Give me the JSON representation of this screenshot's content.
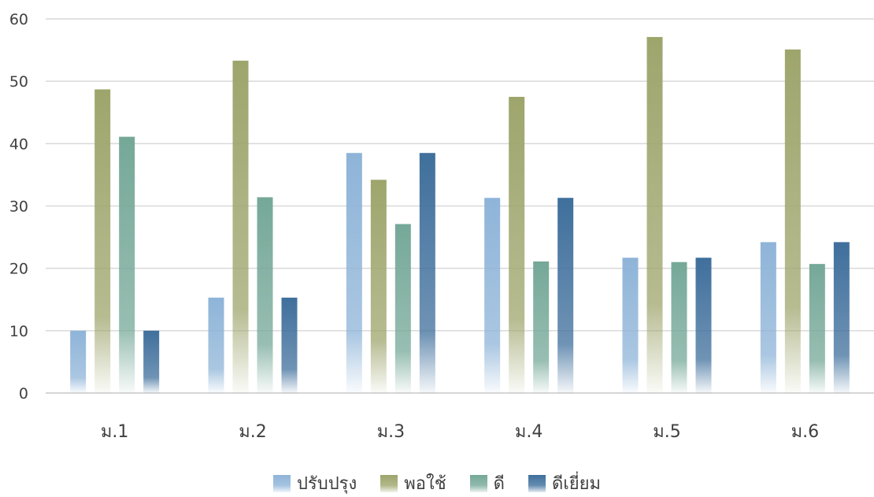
{
  "chart_data": {
    "type": "bar",
    "categories": [
      "ม.1",
      "ม.2",
      "ม.3",
      "ม.4",
      "ม.5",
      "ม.6"
    ],
    "series": [
      {
        "name": "ปรับปรุง",
        "color": "#8eb4d8",
        "values": [
          10,
          15.3,
          38.5,
          31.3,
          21.7,
          24.2
        ]
      },
      {
        "name": "พอใช้",
        "color": "#9ea56c",
        "values": [
          48.7,
          53.3,
          34.2,
          47.5,
          57.1,
          55.1
        ]
      },
      {
        "name": "ดี",
        "color": "#75a898",
        "values": [
          41.1,
          31.4,
          27.1,
          21.1,
          21.0,
          20.7
        ]
      },
      {
        "name": "ดีเยี่ยม",
        "color": "#3f6f9c",
        "values": [
          10,
          15.3,
          38.5,
          31.3,
          21.7,
          24.2
        ]
      }
    ],
    "yticks": [
      0,
      10,
      20,
      30,
      40,
      50,
      60
    ],
    "ylim": [
      0,
      60
    ],
    "grid": true,
    "legend_position": "bottom"
  }
}
